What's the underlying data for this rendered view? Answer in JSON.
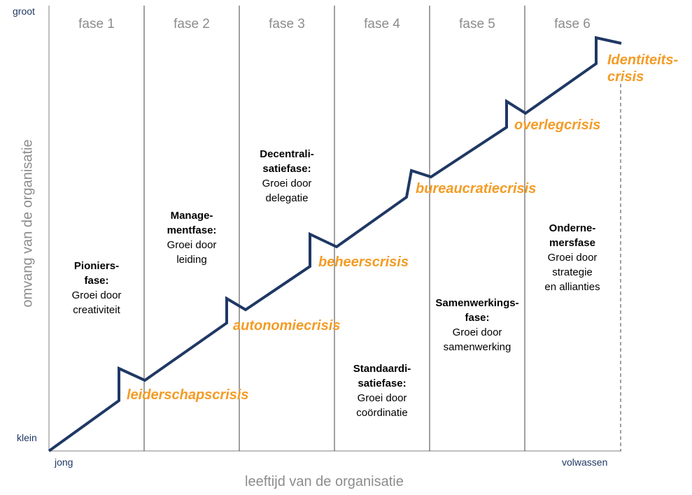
{
  "axes": {
    "y_title": "omvang van de organisatie",
    "x_title": "leeftijd van de organisatie",
    "y_top": "groot",
    "y_bottom": "klein",
    "x_left": "jong",
    "x_right": "volwassen"
  },
  "phases": [
    {
      "label": "fase 1",
      "name": "Pioniers-\nfase:",
      "growth": "Groei door\ncreativiteit",
      "crisis": "leiderschapscrisis"
    },
    {
      "label": "fase 2",
      "name": "Manage-\nmentfase:",
      "growth": "Groei door\nleiding",
      "crisis": "autonomiecrisis"
    },
    {
      "label": "fase 3",
      "name": "Decentrali-\nsatiefase:",
      "growth": "Groei door\ndelegatie",
      "crisis": "beheerscrisis"
    },
    {
      "label": "fase 4",
      "name": "Standaardi-\nsatiefase:",
      "growth": "Groei door\ncoördinatie",
      "crisis": "bureaucratiecrisis"
    },
    {
      "label": "fase 5",
      "name": "Samenwerkings-\nfase:",
      "growth": "Groei door\nsamenwerking",
      "crisis": "overlegcrisis"
    },
    {
      "label": "fase 6",
      "name": "Onderne-\nmersfase",
      "growth": "Groei door\nstrategie\nen allianties",
      "crisis": "Identiteits-\ncrisis"
    }
  ],
  "colors": {
    "line": "#1f3864",
    "crisis": "#f39c26",
    "phase_label": "#8c8c8c",
    "axis_title": "#8c8c8c",
    "corner_labels": "#1f3864"
  }
}
